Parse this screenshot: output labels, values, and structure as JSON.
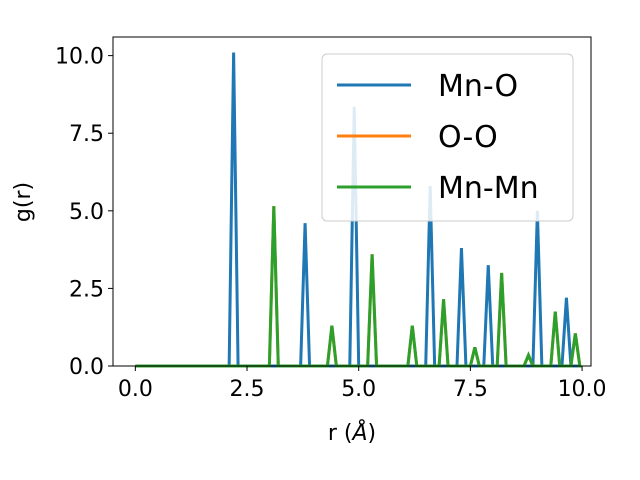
{
  "chart_data": {
    "type": "line",
    "title": "",
    "xlabel": "r (Å)",
    "xlabel_parts": {
      "pre": "r (",
      "unit": "Å",
      "post": ")"
    },
    "ylabel": "g(r)",
    "xlim": [
      -0.5,
      10.2
    ],
    "ylim": [
      0,
      10.6
    ],
    "xticks": [
      0.0,
      2.5,
      5.0,
      7.5,
      10.0
    ],
    "xtick_labels": [
      "0.0",
      "2.5",
      "5.0",
      "7.5",
      "10.0"
    ],
    "yticks": [
      0.0,
      2.5,
      5.0,
      7.5,
      10.0
    ],
    "ytick_labels": [
      "0.0",
      "2.5",
      "5.0",
      "7.5",
      "10.0"
    ],
    "grid": false,
    "legend": "top-right",
    "peak_halfwidth": 0.1,
    "series": [
      {
        "name": "Mn-O",
        "color": "#1f77b4",
        "peaks": [
          [
            2.2,
            10.1
          ],
          [
            3.8,
            4.6
          ],
          [
            4.9,
            8.35
          ],
          [
            6.6,
            5.8
          ],
          [
            7.3,
            3.8
          ],
          [
            7.9,
            3.25
          ],
          [
            9.0,
            5.0
          ],
          [
            9.65,
            2.2
          ]
        ]
      },
      {
        "name": "O-O",
        "color": "#ff7f0e",
        "peaks": [
          [
            3.1,
            5.15
          ],
          [
            4.4,
            1.3
          ],
          [
            5.3,
            3.6
          ],
          [
            6.2,
            1.3
          ],
          [
            6.9,
            2.15
          ],
          [
            7.6,
            0.6
          ],
          [
            8.2,
            3.0
          ],
          [
            8.8,
            0.35
          ],
          [
            9.4,
            1.75
          ],
          [
            9.85,
            1.05
          ]
        ]
      },
      {
        "name": "Mn-Mn",
        "color": "#2ca02c",
        "peaks": [
          [
            3.1,
            5.15
          ],
          [
            4.4,
            1.3
          ],
          [
            5.3,
            3.6
          ],
          [
            6.2,
            1.3
          ],
          [
            6.9,
            2.15
          ],
          [
            7.6,
            0.6
          ],
          [
            8.2,
            3.0
          ],
          [
            8.8,
            0.35
          ],
          [
            9.4,
            1.75
          ],
          [
            9.85,
            1.05
          ]
        ]
      }
    ],
    "x_start": 0.0,
    "x_end": 9.9
  }
}
